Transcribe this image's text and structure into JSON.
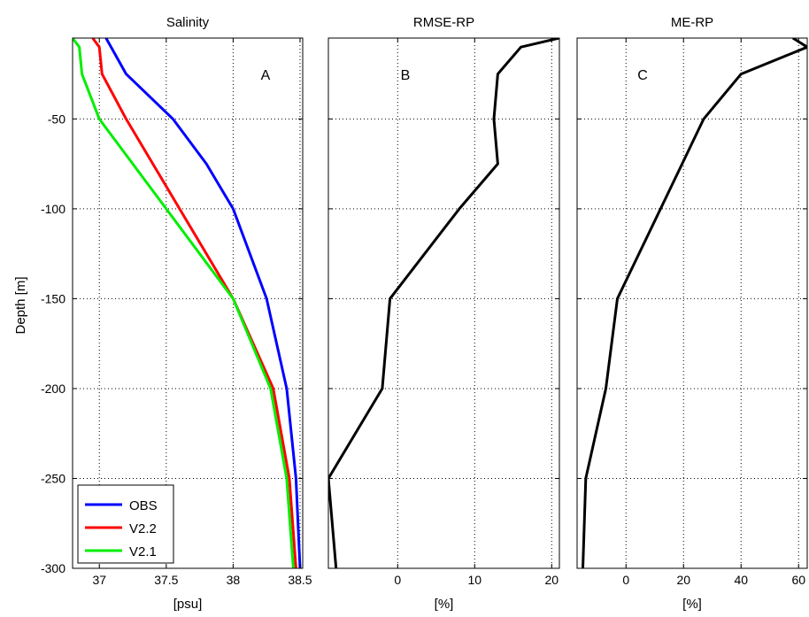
{
  "figure": {
    "ylabel": "Depth [m]",
    "y_ticks": [
      -50,
      -100,
      -150,
      -200,
      -250,
      -300
    ],
    "ylim": [
      -300,
      -5
    ]
  },
  "chart_data": [
    {
      "type": "line",
      "title": "Salinity",
      "panel_label": "A",
      "xlabel": "[psu]",
      "xlim": [
        36.8,
        38.52
      ],
      "x_ticks": [
        "37",
        "37.5",
        "38",
        "38.5"
      ],
      "x_tick_values": [
        37,
        37.5,
        38,
        38.5
      ],
      "ylim": [
        -300,
        -5
      ],
      "grid": true,
      "legend_position": "bottom-left",
      "series": [
        {
          "name": "OBS",
          "color": "#0000ff",
          "x": [
            37.05,
            37.2,
            37.55,
            37.8,
            38.0,
            38.25,
            38.4,
            38.47,
            38.5
          ],
          "y": [
            -5,
            -25,
            -50,
            -75,
            -100,
            -150,
            -200,
            -250,
            -300
          ]
        },
        {
          "name": "V2.2",
          "color": "#ff0000",
          "x": [
            36.95,
            37.0,
            37.02,
            37.2,
            37.6,
            38.0,
            38.3,
            38.42,
            38.47
          ],
          "y": [
            -5,
            -10,
            -25,
            -50,
            -100,
            -150,
            -200,
            -250,
            -300
          ]
        },
        {
          "name": "V2.1",
          "color": "#00ee00",
          "x": [
            36.8,
            36.85,
            36.87,
            37.0,
            37.5,
            38.0,
            38.28,
            38.4,
            38.45
          ],
          "y": [
            -5,
            -10,
            -25,
            -50,
            -100,
            -150,
            -200,
            -250,
            -300
          ]
        }
      ]
    },
    {
      "type": "line",
      "title": "RMSE-RP",
      "panel_label": "B",
      "xlabel": "[%]",
      "xlim": [
        -9,
        21
      ],
      "x_ticks": [
        "0",
        "10",
        "20"
      ],
      "x_tick_values": [
        0,
        10,
        20
      ],
      "ylim": [
        -300,
        -5
      ],
      "grid": true,
      "series": [
        {
          "name": "",
          "color": "#000000",
          "x": [
            21,
            16,
            13,
            12.5,
            13,
            8,
            -1,
            -2,
            -9,
            -8
          ],
          "y": [
            -5,
            -10,
            -25,
            -50,
            -75,
            -100,
            -150,
            -200,
            -250,
            -300
          ]
        }
      ]
    },
    {
      "type": "line",
      "title": "ME-RP",
      "panel_label": "C",
      "xlabel": "[%]",
      "xlim": [
        -17,
        63
      ],
      "x_ticks": [
        "0",
        "20",
        "40",
        "60"
      ],
      "x_tick_values": [
        0,
        20,
        40,
        60
      ],
      "ylim": [
        -300,
        -5
      ],
      "grid": true,
      "series": [
        {
          "name": "",
          "color": "#000000",
          "x": [
            58,
            63,
            40,
            27,
            12,
            -3,
            -7,
            -14,
            -15
          ],
          "y": [
            -5,
            -10,
            -25,
            -50,
            -100,
            -150,
            -200,
            -250,
            -300
          ]
        }
      ]
    }
  ]
}
